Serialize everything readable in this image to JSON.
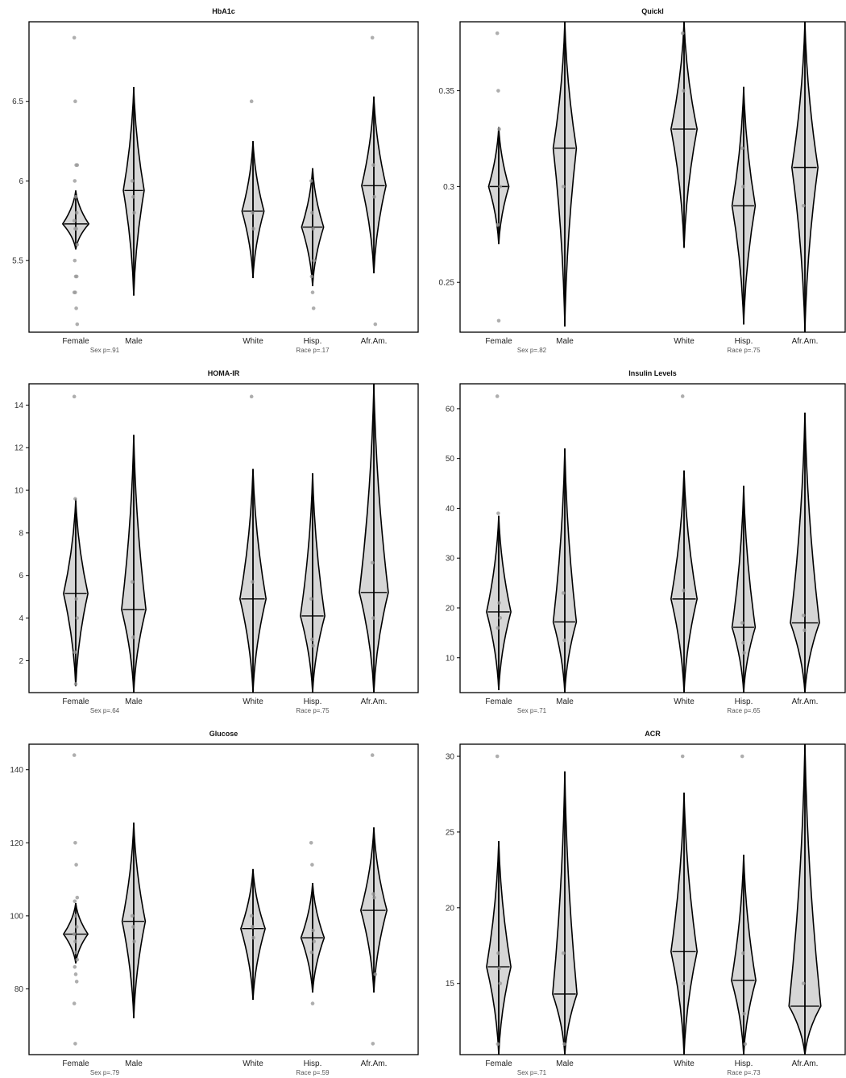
{
  "chart_data": [
    {
      "type": "violin",
      "title": "HbA1c",
      "categories": [
        "Female",
        "Male",
        "White",
        "Hisp.",
        "Afr.Am."
      ],
      "y_ticks": [
        5.5,
        6.0,
        6.5
      ],
      "ylim": [
        5.05,
        7.0
      ],
      "p_labels": {
        "sex": "Sex p=.91",
        "race": "Race p=.17"
      },
      "groups": [
        {
          "name": "Female",
          "median": 5.73,
          "min": 5.57,
          "max": 5.94,
          "width": 0.45,
          "points": [
            6.9,
            6.5,
            6.1,
            6.1,
            6.0,
            5.9,
            5.8,
            5.75,
            5.7,
            5.7,
            5.6,
            5.5,
            5.4,
            5.4,
            5.3,
            5.3,
            5.2,
            5.1
          ]
        },
        {
          "name": "Male",
          "median": 5.94,
          "min": 5.28,
          "max": 6.59,
          "width": 0.36,
          "points": [
            6.0,
            5.9,
            5.8
          ]
        },
        {
          "name": "White",
          "median": 5.81,
          "min": 5.39,
          "max": 6.25,
          "width": 0.38,
          "points": [
            6.5,
            5.8,
            5.7
          ]
        },
        {
          "name": "Hisp.",
          "median": 5.71,
          "min": 5.34,
          "max": 6.08,
          "width": 0.38,
          "points": [
            6.0,
            5.8,
            5.7,
            5.5,
            5.4,
            5.3,
            5.2
          ]
        },
        {
          "name": "Afr.Am.",
          "median": 5.97,
          "min": 5.42,
          "max": 6.53,
          "width": 0.42,
          "points": [
            6.9,
            6.1,
            5.9,
            5.1
          ]
        }
      ]
    },
    {
      "type": "violin",
      "title": "Quickl",
      "categories": [
        "Female",
        "Male",
        "White",
        "Hisp.",
        "Afr.Am."
      ],
      "y_ticks": [
        0.25,
        0.3,
        0.35
      ],
      "ylim": [
        0.224,
        0.386
      ],
      "p_labels": {
        "sex": "Sex p=.82",
        "race": "Race p=.75"
      },
      "groups": [
        {
          "name": "Female",
          "median": 0.3,
          "min": 0.27,
          "max": 0.331,
          "width": 0.35,
          "points": [
            0.38,
            0.35,
            0.33,
            0.3,
            0.28,
            0.23
          ]
        },
        {
          "name": "Male",
          "median": 0.32,
          "min": 0.227,
          "max": 0.386,
          "width": 0.4,
          "points": [
            0.3
          ]
        },
        {
          "name": "White",
          "median": 0.33,
          "min": 0.268,
          "max": 0.386,
          "width": 0.45,
          "points": [
            0.38,
            0.35
          ]
        },
        {
          "name": "Hisp.",
          "median": 0.29,
          "min": 0.228,
          "max": 0.352,
          "width": 0.4,
          "points": [
            0.32,
            0.3
          ]
        },
        {
          "name": "Afr.Am.",
          "median": 0.31,
          "min": 0.224,
          "max": 0.386,
          "width": 0.45,
          "points": [
            0.29
          ]
        }
      ]
    },
    {
      "type": "violin",
      "title": "HOMA-IR",
      "categories": [
        "Female",
        "Male",
        "White",
        "Hisp.",
        "Afr.Am."
      ],
      "y_ticks": [
        2,
        4,
        6,
        8,
        10,
        12,
        14
      ],
      "ylim": [
        0.5,
        15.0
      ],
      "p_labels": {
        "sex": "Sex p=.64",
        "race": "Race p=.75"
      },
      "groups": [
        {
          "name": "Female",
          "median": 5.15,
          "min": 0.8,
          "max": 9.6,
          "width": 0.42,
          "points": [
            14.4,
            9.6,
            4.9,
            4.0,
            2.4,
            0.9
          ]
        },
        {
          "name": "Male",
          "median": 4.4,
          "min": 0.5,
          "max": 12.6,
          "width": 0.42,
          "points": [
            5.7,
            3.1
          ]
        },
        {
          "name": "White",
          "median": 4.9,
          "min": 0.5,
          "max": 11.0,
          "width": 0.45,
          "points": [
            14.4,
            5.7
          ]
        },
        {
          "name": "Hisp.",
          "median": 4.1,
          "min": 0.5,
          "max": 10.8,
          "width": 0.42,
          "points": [
            4.9,
            3.0,
            2.7
          ]
        },
        {
          "name": "Afr.Am.",
          "median": 5.2,
          "min": 0.5,
          "max": 15.0,
          "width": 0.5,
          "points": [
            6.6,
            4.0
          ]
        }
      ]
    },
    {
      "type": "violin",
      "title": "Insulin Levels",
      "categories": [
        "Female",
        "Male",
        "White",
        "Hisp.",
        "Afr.Am."
      ],
      "y_ticks": [
        10,
        20,
        30,
        40,
        50,
        60
      ],
      "ylim": [
        3.0,
        65.0
      ],
      "p_labels": {
        "sex": "Sex p=.71",
        "race": "Race p=.65"
      },
      "groups": [
        {
          "name": "Female",
          "median": 19.2,
          "min": 3.5,
          "max": 38.5,
          "width": 0.42,
          "points": [
            62.5,
            39.0,
            21.0,
            18.0,
            16.0
          ]
        },
        {
          "name": "Male",
          "median": 17.2,
          "min": 3.0,
          "max": 52.0,
          "width": 0.4,
          "points": [
            23.0,
            13.5
          ]
        },
        {
          "name": "White",
          "median": 21.8,
          "min": 3.0,
          "max": 47.6,
          "width": 0.45,
          "points": [
            62.5,
            23.5
          ]
        },
        {
          "name": "Hisp.",
          "median": 16.1,
          "min": 3.0,
          "max": 44.5,
          "width": 0.4,
          "points": [
            17.0,
            13.0,
            11.0
          ]
        },
        {
          "name": "Afr.Am.",
          "median": 17.0,
          "min": 3.0,
          "max": 59.2,
          "width": 0.5,
          "points": [
            18.5,
            15.5
          ]
        }
      ]
    },
    {
      "type": "violin",
      "title": "Glucose",
      "categories": [
        "Female",
        "Male",
        "White",
        "Hisp.",
        "Afr.Am."
      ],
      "y_ticks": [
        80,
        100,
        120,
        140
      ],
      "ylim": [
        62.0,
        147.0
      ],
      "p_labels": {
        "sex": "Sex p=.79",
        "race": "Race p=.59"
      },
      "groups": [
        {
          "name": "Female",
          "median": 95.0,
          "min": 87.0,
          "max": 103.5,
          "width": 0.42,
          "points": [
            144,
            120,
            114,
            105,
            104,
            100,
            97,
            95,
            93,
            90,
            88,
            86,
            84,
            82,
            76,
            65
          ]
        },
        {
          "name": "Male",
          "median": 98.5,
          "min": 72.0,
          "max": 125.5,
          "width": 0.4,
          "points": [
            100,
            97,
            93
          ]
        },
        {
          "name": "White",
          "median": 96.5,
          "min": 77.0,
          "max": 112.8,
          "width": 0.42,
          "points": [
            100,
            97,
            94
          ]
        },
        {
          "name": "Hisp.",
          "median": 94.0,
          "min": 79.0,
          "max": 109.0,
          "width": 0.4,
          "points": [
            120,
            114,
            96,
            93,
            90,
            76
          ]
        },
        {
          "name": "Afr.Am.",
          "median": 101.5,
          "min": 79.0,
          "max": 124.2,
          "width": 0.45,
          "points": [
            144,
            106,
            105,
            84,
            65
          ]
        }
      ]
    },
    {
      "type": "violin",
      "title": "ACR",
      "categories": [
        "Female",
        "Male",
        "White",
        "Hisp.",
        "Afr.Am."
      ],
      "y_ticks": [
        15,
        20,
        25,
        30
      ],
      "ylim": [
        10.3,
        30.8
      ],
      "p_labels": {
        "sex": "Sex p=.71",
        "race": "Race p=.73"
      },
      "groups": [
        {
          "name": "Female",
          "median": 16.1,
          "min": 10.3,
          "max": 24.4,
          "width": 0.42,
          "points": [
            30.0,
            17.0,
            16.0,
            15.0,
            11.0
          ]
        },
        {
          "name": "Male",
          "median": 14.3,
          "min": 10.3,
          "max": 29.0,
          "width": 0.42,
          "points": [
            17.0,
            11.0
          ]
        },
        {
          "name": "White",
          "median": 17.1,
          "min": 10.3,
          "max": 27.6,
          "width": 0.45,
          "points": [
            30.0,
            15.0
          ]
        },
        {
          "name": "Hisp.",
          "median": 15.2,
          "min": 10.3,
          "max": 23.5,
          "width": 0.42,
          "points": [
            30.0,
            17.0,
            13.0,
            11.0
          ]
        },
        {
          "name": "Afr.Am.",
          "median": 13.5,
          "min": 10.3,
          "max": 30.8,
          "width": 0.55,
          "points": [
            15.0
          ]
        }
      ]
    }
  ]
}
